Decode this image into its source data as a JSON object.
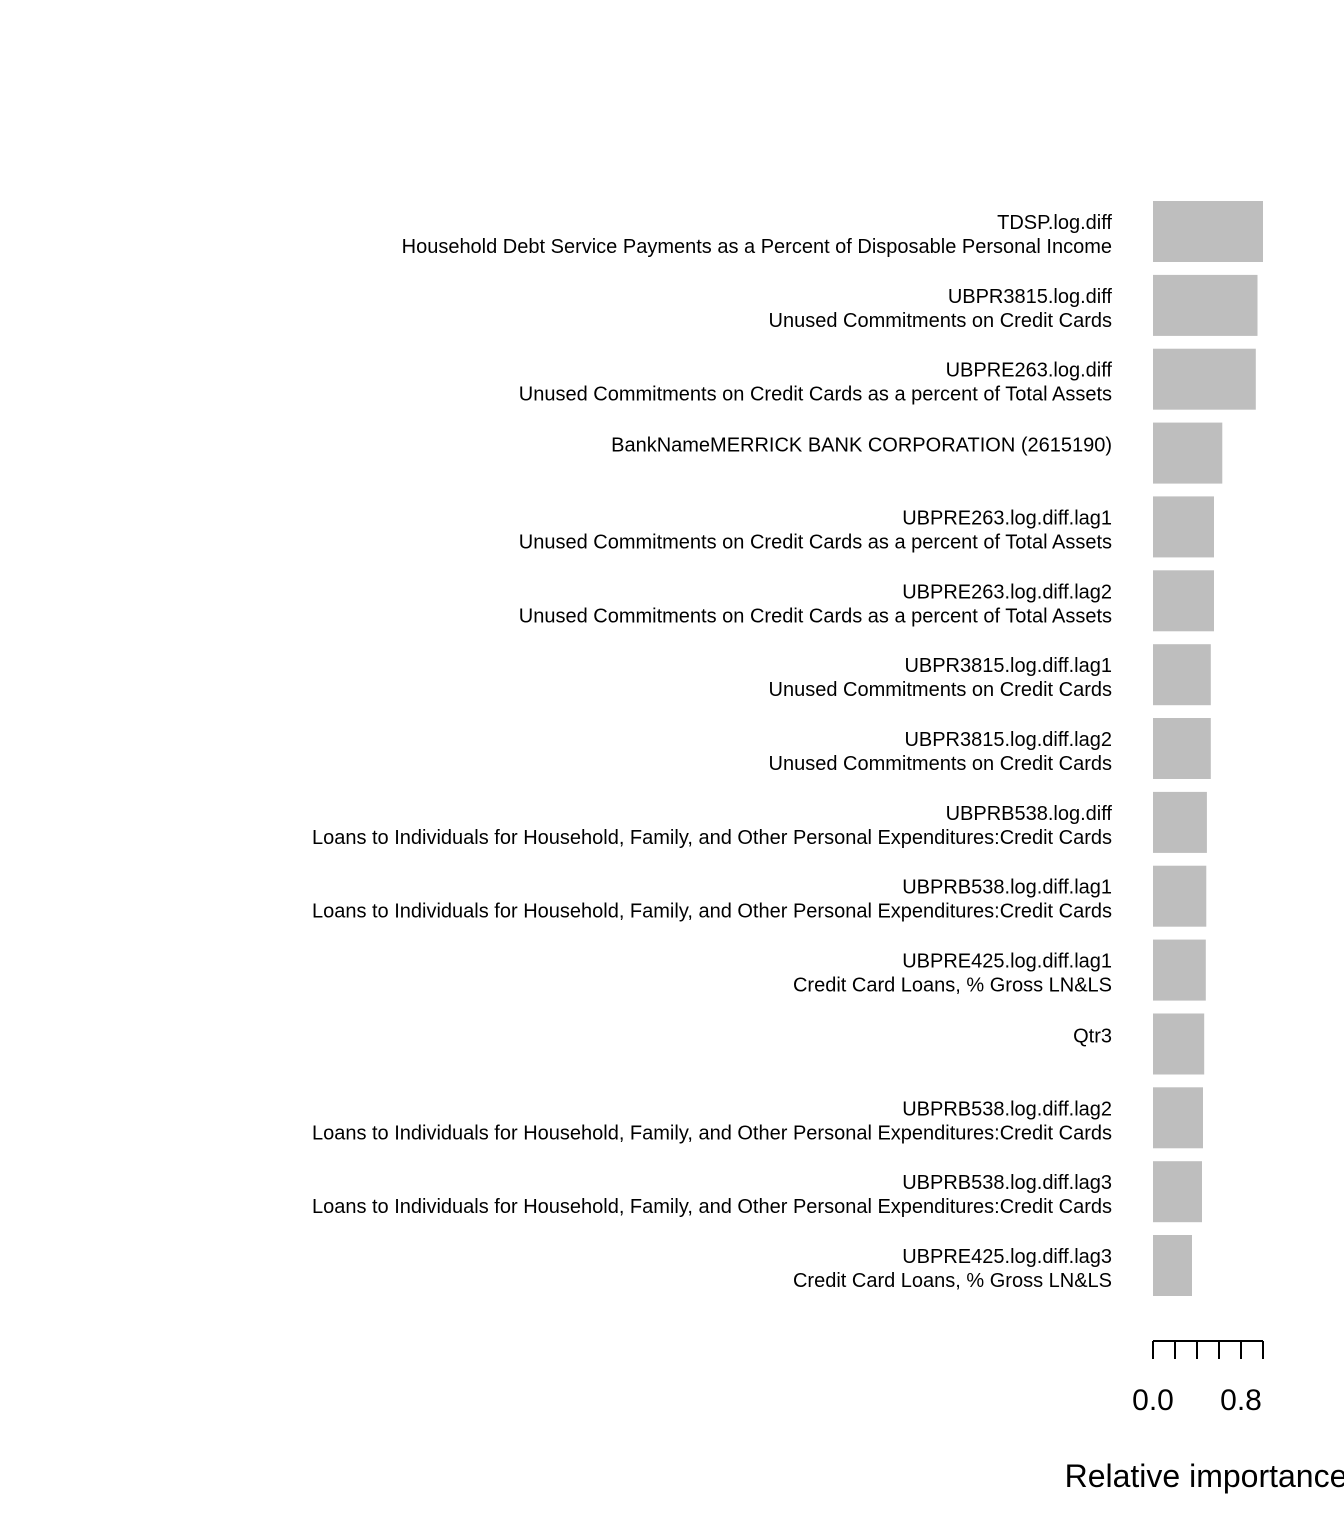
{
  "chart_data": {
    "type": "bar",
    "orientation": "horizontal",
    "title": "",
    "xlabel": "Relative importance",
    "ylabel": "",
    "xlim": [
      0,
      1.0
    ],
    "x_ticks": [
      0.0,
      0.2,
      0.4,
      0.6,
      0.8,
      1.0
    ],
    "x_tick_labels": [
      {
        "value": 0.0,
        "label": "0.0"
      },
      {
        "value": 0.8,
        "label": "0.8"
      }
    ],
    "bar_color": "#bebebe",
    "grid": false,
    "legend": "none",
    "categories": [
      {
        "name": "TDSP.log.diff",
        "description": "Household Debt Service Payments as a Percent of Disposable Personal Income",
        "value": 1.0
      },
      {
        "name": "UBPR3815.log.diff",
        "description": "Unused Commitments on Credit Cards",
        "value": 0.95
      },
      {
        "name": "UBPRE263.log.diff",
        "description": "Unused Commitments on Credit Cards as a percent of Total Assets",
        "value": 0.935
      },
      {
        "name": "BankNameMERRICK BANK CORPORATION (2615190)",
        "description": "",
        "value": 0.63
      },
      {
        "name": "UBPRE263.log.diff.lag1",
        "description": "Unused Commitments on Credit Cards as a percent of Total Assets",
        "value": 0.555
      },
      {
        "name": "UBPRE263.log.diff.lag2",
        "description": "Unused Commitments on Credit Cards as a percent of Total Assets",
        "value": 0.555
      },
      {
        "name": "UBPR3815.log.diff.lag1",
        "description": "Unused Commitments on Credit Cards",
        "value": 0.525
      },
      {
        "name": "UBPR3815.log.diff.lag2",
        "description": "Unused Commitments on Credit Cards",
        "value": 0.525
      },
      {
        "name": "UBPRB538.log.diff",
        "description": "Loans to Individuals for Household, Family, and Other Personal Expenditures:Credit Cards",
        "value": 0.49
      },
      {
        "name": "UBPRB538.log.diff.lag1",
        "description": "Loans to Individuals for Household, Family, and Other Personal Expenditures:Credit Cards",
        "value": 0.485
      },
      {
        "name": "UBPRE425.log.diff.lag1",
        "description": "Credit Card Loans, % Gross LN&LS",
        "value": 0.48
      },
      {
        "name": "Qtr3",
        "description": "",
        "value": 0.465
      },
      {
        "name": "UBPRB538.log.diff.lag2",
        "description": "Loans to Individuals for Household, Family, and Other Personal Expenditures:Credit Cards",
        "value": 0.455
      },
      {
        "name": "UBPRB538.log.diff.lag3",
        "description": "Loans to Individuals for Household, Family, and Other Personal Expenditures:Credit Cards",
        "value": 0.445
      },
      {
        "name": "UBPRE425.log.diff.lag3",
        "description": "Credit Card Loans, % Gross LN&LS",
        "value": 0.355
      }
    ]
  }
}
